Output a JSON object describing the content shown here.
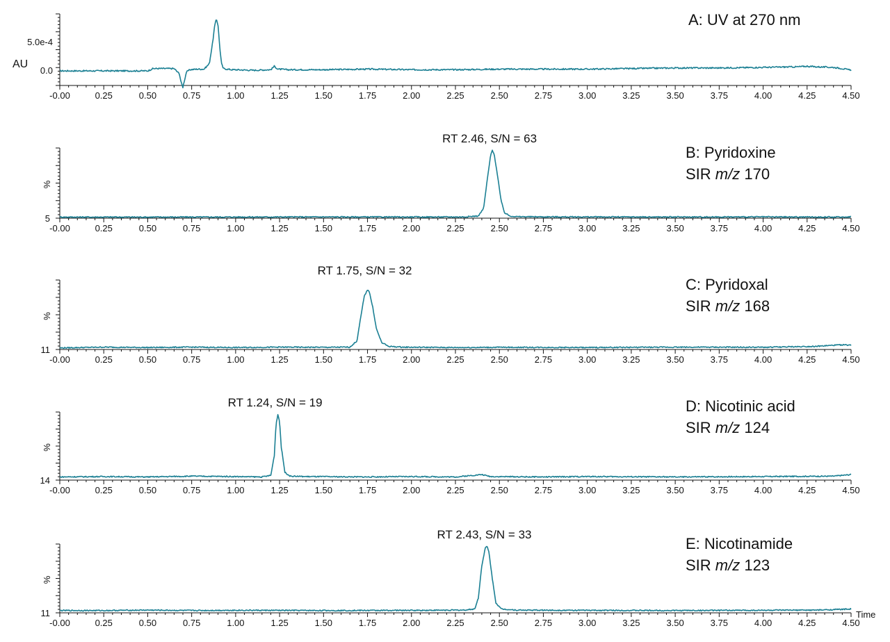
{
  "colors": {
    "trace": "#1a7f93",
    "axis": "#111111"
  },
  "x_label": "Time",
  "chart_data": [
    {
      "type": "line",
      "panel": "A",
      "title": "A: UV at 270 nm",
      "ylabel": "AU",
      "y_ticks": [
        "5.0e-4",
        "0.0"
      ],
      "xlim": [
        0,
        4.5
      ],
      "x_ticks": [
        "-0.00",
        "0.25",
        "0.50",
        "0.75",
        "1.00",
        "1.25",
        "1.50",
        "1.75",
        "2.00",
        "2.25",
        "2.50",
        "2.75",
        "3.00",
        "3.25",
        "3.50",
        "3.75",
        "4.00",
        "4.25",
        "4.50"
      ],
      "ylim": [
        -0.0003,
        0.001
      ],
      "series": [
        {
          "x": [
            0.0,
            0.1,
            0.2,
            0.3,
            0.4,
            0.5,
            0.53,
            0.56,
            0.6,
            0.65,
            0.68,
            0.69,
            0.7,
            0.71,
            0.72,
            0.74,
            0.78,
            0.82,
            0.85,
            0.87,
            0.88,
            0.89,
            0.9,
            0.91,
            0.92,
            0.93,
            0.95,
            0.98,
            1.0,
            1.1,
            1.2,
            1.22,
            1.24,
            1.3,
            1.5,
            1.75,
            2.0,
            2.25,
            2.5,
            2.75,
            3.0,
            3.25,
            3.5,
            3.75,
            4.0,
            4.2,
            4.25,
            4.3,
            4.4,
            4.45,
            4.5
          ],
          "y": [
            0.0,
            0.0,
            0.0,
            0.0,
            0.0,
            0.0,
            4e-05,
            4e-05,
            4e-05,
            4e-05,
            -5e-05,
            -0.0002,
            -0.00028,
            -0.00015,
            -2e-05,
            2e-05,
            3e-05,
            3e-05,
            0.00012,
            0.0005,
            0.00075,
            0.0009,
            0.00078,
            0.0004,
            0.00012,
            4e-05,
            3e-05,
            2e-05,
            2e-05,
            1e-05,
            2e-05,
            8e-05,
            3e-05,
            2e-05,
            2e-05,
            3e-05,
            2e-05,
            2e-05,
            3e-05,
            3e-05,
            3e-05,
            4e-05,
            5e-05,
            5e-05,
            6e-05,
            7e-05,
            8e-05,
            7e-05,
            6e-05,
            4e-05,
            1e-05
          ]
        }
      ]
    },
    {
      "type": "line",
      "panel": "B",
      "title": "B: Pyridoxine",
      "subtitle": [
        "SIR ",
        "m/z",
        " 170"
      ],
      "annotation": "RT 2.46, S/N = 63",
      "ylabel": "%",
      "y_ticks": [
        "5"
      ],
      "xlim": [
        0,
        4.5
      ],
      "x_ticks": [
        "-0.00",
        "0.25",
        "0.50",
        "0.75",
        "1.00",
        "1.25",
        "1.50",
        "1.75",
        "2.00",
        "2.25",
        "2.50",
        "2.75",
        "3.00",
        "3.25",
        "3.50",
        "3.75",
        "4.00",
        "4.25",
        "4.50"
      ],
      "ylim": [
        5,
        100
      ],
      "series": [
        {
          "x": [
            0.0,
            0.5,
            1.0,
            1.5,
            2.0,
            2.3,
            2.38,
            2.41,
            2.43,
            2.45,
            2.46,
            2.47,
            2.49,
            2.51,
            2.53,
            2.56,
            2.6,
            2.75,
            3.0,
            3.5,
            4.0,
            4.45,
            4.5
          ],
          "y": [
            6.5,
            6.5,
            6.6,
            6.7,
            6.6,
            6.7,
            8,
            18,
            55,
            90,
            97,
            92,
            62,
            28,
            12,
            8,
            7,
            6.8,
            6.7,
            6.6,
            6.7,
            6.5,
            7
          ]
        }
      ]
    },
    {
      "type": "line",
      "panel": "C",
      "title": "C: Pyridoxal",
      "subtitle": [
        "SIR ",
        "m/z",
        " 168"
      ],
      "annotation": "RT 1.75, S/N = 32",
      "ylabel": "%",
      "y_ticks": [
        "11"
      ],
      "xlim": [
        0,
        4.5
      ],
      "x_ticks": [
        "-0.00",
        "0.25",
        "0.50",
        "0.75",
        "1.00",
        "1.25",
        "1.50",
        "1.75",
        "2.00",
        "2.25",
        "2.50",
        "2.75",
        "3.00",
        "3.25",
        "3.50",
        "3.75",
        "4.00",
        "4.25",
        "4.50"
      ],
      "ylim": [
        11,
        100
      ],
      "series": [
        {
          "x": [
            0.0,
            0.25,
            0.5,
            0.75,
            1.0,
            1.25,
            1.5,
            1.65,
            1.69,
            1.71,
            1.73,
            1.75,
            1.76,
            1.78,
            1.8,
            1.83,
            1.87,
            1.95,
            2.25,
            2.5,
            3.0,
            3.5,
            4.0,
            4.3,
            4.45,
            4.5
          ],
          "y": [
            13,
            14,
            13.5,
            14,
            13.5,
            14,
            13.8,
            14,
            22,
            50,
            78,
            88,
            85,
            65,
            38,
            20,
            15,
            14,
            13.5,
            13.8,
            13.5,
            14,
            13.8,
            15,
            17,
            16.5
          ]
        }
      ]
    },
    {
      "type": "line",
      "panel": "D",
      "title": "D: Nicotinic acid",
      "subtitle": [
        "SIR ",
        "m/z",
        " 124"
      ],
      "annotation": "RT 1.24, S/N = 19",
      "ylabel": "%",
      "y_ticks": [
        "14"
      ],
      "xlim": [
        0,
        4.5
      ],
      "x_ticks": [
        "-0.00",
        "0.25",
        "0.50",
        "0.75",
        "1.00",
        "1.25",
        "1.50",
        "1.75",
        "2.00",
        "2.25",
        "2.50",
        "2.75",
        "3.00",
        "3.25",
        "3.50",
        "3.75",
        "4.00",
        "4.25",
        "4.50"
      ],
      "ylim": [
        14,
        100
      ],
      "series": [
        {
          "x": [
            0.0,
            0.25,
            0.5,
            0.75,
            1.0,
            1.15,
            1.2,
            1.22,
            1.23,
            1.24,
            1.25,
            1.26,
            1.28,
            1.31,
            1.4,
            1.75,
            2.0,
            2.25,
            2.4,
            2.45,
            2.75,
            3.0,
            3.5,
            4.0,
            4.4,
            4.5
          ],
          "y": [
            18,
            18.5,
            18,
            19,
            18.5,
            18,
            20,
            45,
            85,
            97,
            88,
            55,
            24,
            19,
            18.5,
            18,
            18.5,
            18,
            21,
            18.5,
            18,
            18.5,
            18,
            18.5,
            19,
            21
          ]
        }
      ]
    },
    {
      "type": "line",
      "panel": "E",
      "title": "E: Nicotinamide",
      "subtitle": [
        "SIR ",
        "m/z",
        " 123"
      ],
      "annotation": "RT  2.43, S/N = 33",
      "ylabel": "%",
      "y_ticks": [
        "11"
      ],
      "xlim": [
        0,
        4.5
      ],
      "x_ticks": [
        "-0.00",
        "0.25",
        "0.50",
        "0.75",
        "1.00",
        "1.25",
        "1.50",
        "1.75",
        "2.00",
        "2.25",
        "2.50",
        "2.75",
        "3.00",
        "3.25",
        "3.50",
        "3.75",
        "4.00",
        "4.25",
        "4.50"
      ],
      "ylim": [
        11,
        100
      ],
      "series": [
        {
          "x": [
            0.0,
            0.25,
            0.5,
            0.75,
            1.0,
            1.5,
            2.0,
            2.3,
            2.36,
            2.38,
            2.4,
            2.42,
            2.43,
            2.44,
            2.46,
            2.48,
            2.51,
            2.6,
            3.0,
            3.5,
            4.0,
            4.3,
            4.45,
            4.5
          ],
          "y": [
            14,
            14,
            14.5,
            14,
            14.3,
            14,
            14.2,
            14.5,
            16,
            30,
            72,
            95,
            97,
            90,
            55,
            24,
            16,
            14.5,
            14.2,
            14,
            14.3,
            14.5,
            15.5,
            16
          ]
        }
      ]
    }
  ]
}
